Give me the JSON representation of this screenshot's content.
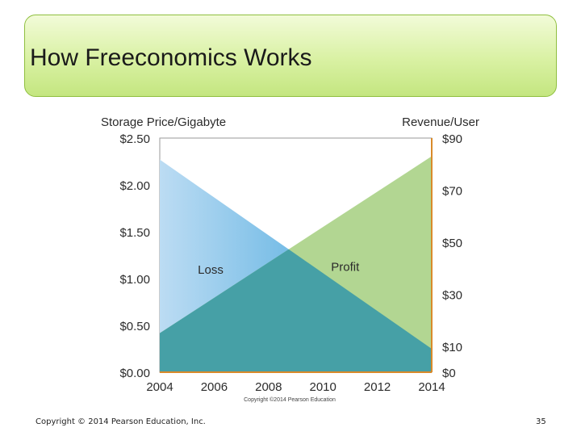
{
  "slide": {
    "title": "How Freeconomics Works",
    "footer": "Copyright © 2014 Pearson Education, Inc.",
    "page_number": "35"
  },
  "chart_data": {
    "type": "area",
    "title": "",
    "left_axis_label": "Storage Price/Gigabyte",
    "right_axis_label": "Revenue/User",
    "x_ticks": [
      "2004",
      "2006",
      "2008",
      "2010",
      "2012",
      "2014"
    ],
    "left_ticks": [
      "$2.50",
      "$2.00",
      "$1.50",
      "$1.00",
      "$0.50",
      "$0.00"
    ],
    "right_ticks": [
      "$90",
      "$70",
      "$50",
      "$30",
      "$10",
      "$0"
    ],
    "xlim": [
      2004,
      2014
    ],
    "left_ylim": [
      0,
      2.5
    ],
    "right_ylim": [
      0,
      90
    ],
    "series": [
      {
        "name": "Storage Price/Gigabyte",
        "axis": "left",
        "x": [
          2004,
          2014
        ],
        "values": [
          2.27,
          0.25
        ],
        "color": "#3aa0dc"
      },
      {
        "name": "Revenue/User",
        "axis": "right",
        "x": [
          2004,
          2014
        ],
        "values": [
          15,
          83
        ],
        "color": "#b2d692"
      }
    ],
    "overlap_color": "#46a0a6",
    "region_labels": {
      "loss": "Loss",
      "profit": "Profit"
    },
    "copyright_note": "Copyright ©2014 Pearson Education",
    "grid": false
  }
}
